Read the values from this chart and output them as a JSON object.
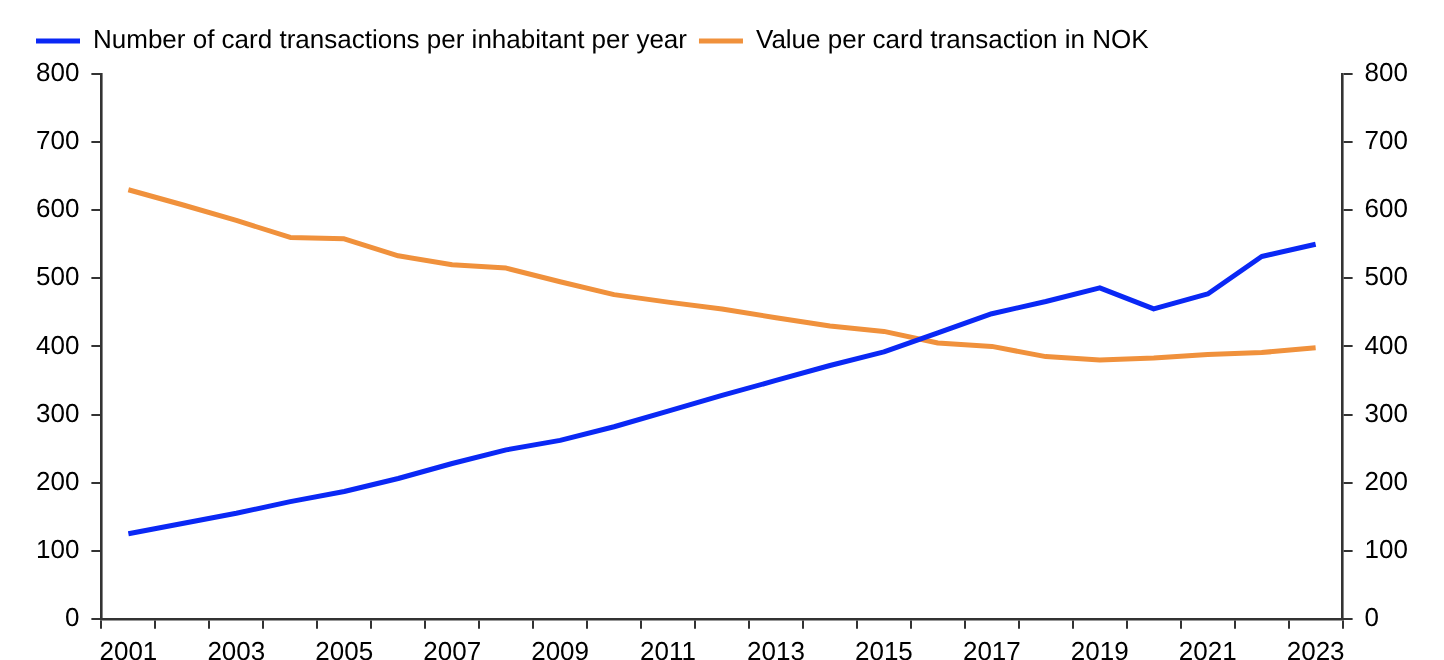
{
  "chart_data": {
    "type": "line",
    "categories": [
      "2001",
      null,
      "2003",
      null,
      "2005",
      null,
      "2007",
      null,
      "2009",
      null,
      "2011",
      null,
      "2013",
      null,
      "2015",
      null,
      "2017",
      null,
      "2019",
      null,
      "2021",
      null,
      "2023"
    ],
    "series": [
      {
        "name": "Number of card transactions per inhabitant per year",
        "color": "#0a28f5",
        "values": [
          125,
          140,
          155,
          172,
          187,
          206,
          228,
          248,
          262,
          282,
          305,
          328,
          350,
          372,
          392,
          420,
          448,
          466,
          486,
          455,
          477,
          532,
          550
        ]
      },
      {
        "name": "Value per card transaction in NOK",
        "color": "#f0913c",
        "axis": "y2",
        "values": [
          630,
          608,
          585,
          560,
          558,
          533,
          520,
          515,
          495,
          476,
          465,
          455,
          442,
          430,
          422,
          405,
          400,
          385,
          380,
          383,
          388,
          391,
          398
        ]
      }
    ],
    "ylim": [
      0,
      800
    ],
    "yticks": [
      0,
      100,
      200,
      300,
      400,
      500,
      600,
      700,
      800
    ],
    "y2lim": [
      0,
      800
    ],
    "y2ticks": [
      0,
      100,
      200,
      300,
      400,
      500,
      600,
      700,
      800
    ],
    "grid": false,
    "legend": "top",
    "marker": "none",
    "line_style": "solid"
  }
}
